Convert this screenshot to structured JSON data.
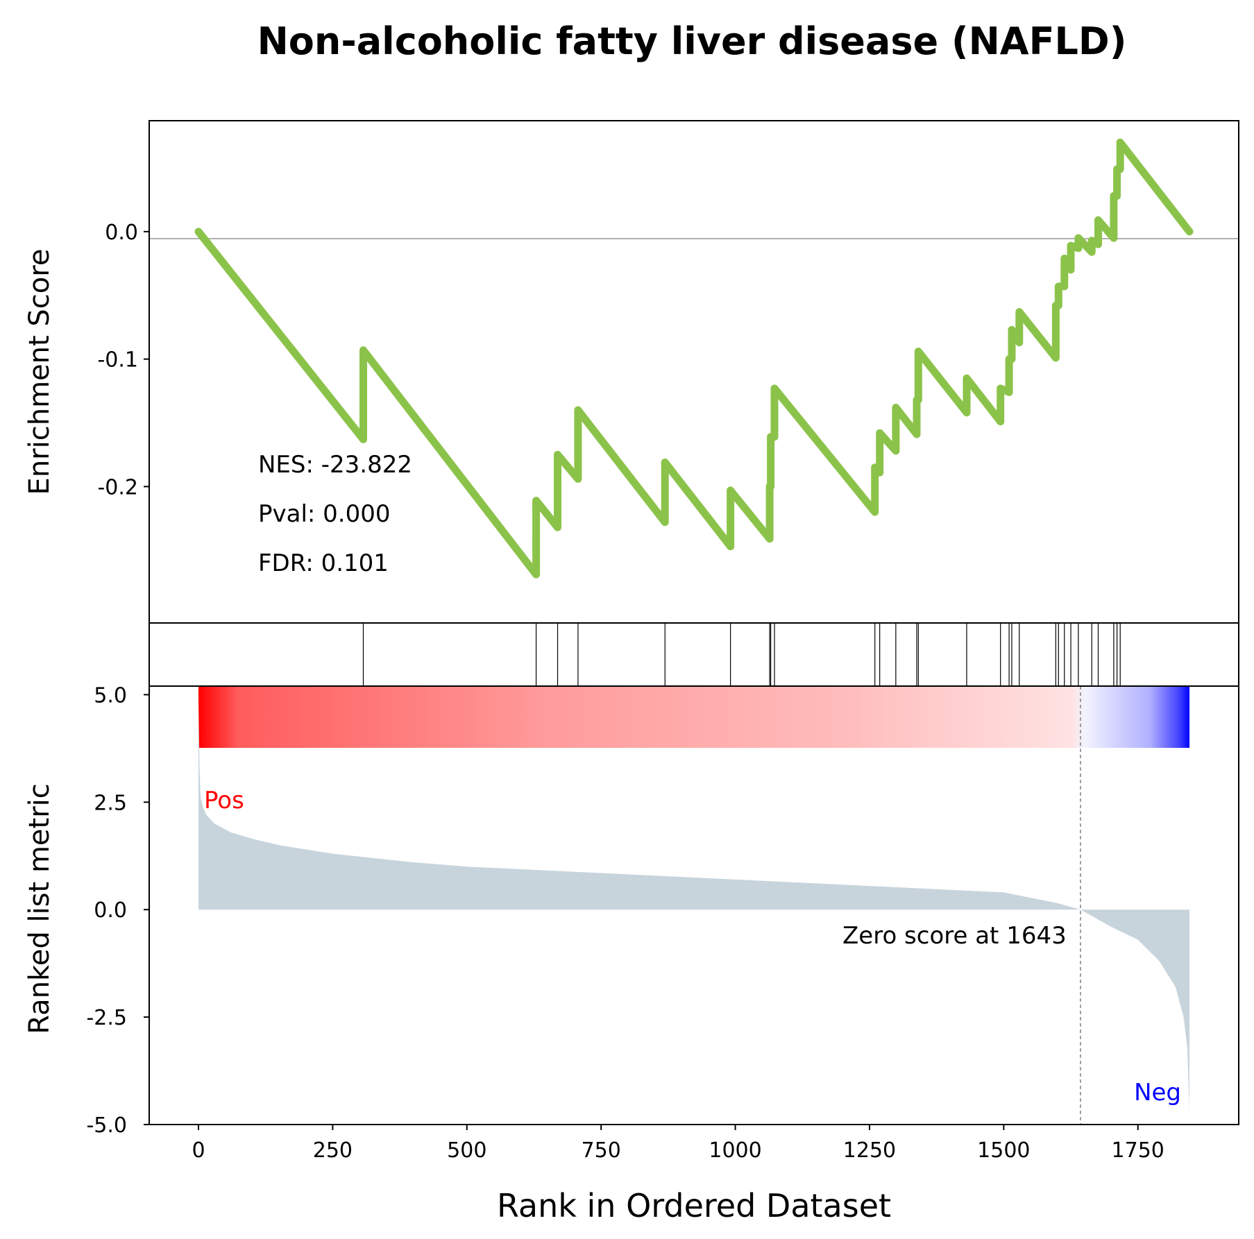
{
  "chart_data": {
    "type": "line",
    "title": "Non-alcoholic fatty liver disease (NAFLD)",
    "xlabel": "Rank in Ordered Dataset",
    "xlim": [
      0,
      1846
    ],
    "xticks": [
      0,
      250,
      500,
      750,
      1000,
      1250,
      1500,
      1750
    ],
    "enrichment": {
      "ylabel": "Enrichment Score",
      "yticks": [
        0.0,
        -0.1,
        -0.2
      ],
      "ytick_labels": [
        "0.0",
        "-0.1",
        "-0.2"
      ],
      "ylim": [
        -0.307,
        0.087
      ],
      "line_color": "#8bc34a",
      "stats": {
        "nes": "NES: -23.822",
        "pval": "Pval: 0.000",
        "fdr": "FDR: 0.101"
      },
      "points": [
        [
          0,
          0.0
        ],
        [
          307,
          -0.163
        ],
        [
          307,
          -0.093
        ],
        [
          629,
          -0.269
        ],
        [
          629,
          -0.211
        ],
        [
          669,
          -0.232
        ],
        [
          669,
          -0.175
        ],
        [
          707,
          -0.194
        ],
        [
          707,
          -0.14
        ],
        [
          869,
          -0.228
        ],
        [
          869,
          -0.181
        ],
        [
          991,
          -0.247
        ],
        [
          991,
          -0.203
        ],
        [
          1064,
          -0.241
        ],
        [
          1064,
          -0.2
        ],
        [
          1066,
          -0.2
        ],
        [
          1066,
          -0.161
        ],
        [
          1073,
          -0.161
        ],
        [
          1073,
          -0.123
        ],
        [
          1260,
          -0.22
        ],
        [
          1260,
          -0.185
        ],
        [
          1269,
          -0.189
        ],
        [
          1269,
          -0.158
        ],
        [
          1299,
          -0.172
        ],
        [
          1299,
          -0.138
        ],
        [
          1338,
          -0.159
        ],
        [
          1338,
          -0.132
        ],
        [
          1341,
          -0.132
        ],
        [
          1341,
          -0.094
        ],
        [
          1431,
          -0.142
        ],
        [
          1431,
          -0.115
        ],
        [
          1494,
          -0.149
        ],
        [
          1494,
          -0.123
        ],
        [
          1510,
          -0.126
        ],
        [
          1510,
          -0.1
        ],
        [
          1515,
          -0.1
        ],
        [
          1515,
          -0.077
        ],
        [
          1529,
          -0.087
        ],
        [
          1529,
          -0.063
        ],
        [
          1597,
          -0.099
        ],
        [
          1597,
          -0.058
        ],
        [
          1602,
          -0.058
        ],
        [
          1602,
          -0.043
        ],
        [
          1613,
          -0.043
        ],
        [
          1613,
          -0.021
        ],
        [
          1625,
          -0.03
        ],
        [
          1625,
          -0.011
        ],
        [
          1639,
          -0.013
        ],
        [
          1639,
          -0.005
        ],
        [
          1664,
          -0.016
        ],
        [
          1664,
          -0.007
        ],
        [
          1676,
          -0.01
        ],
        [
          1676,
          0.009
        ],
        [
          1705,
          -0.005
        ],
        [
          1705,
          0.028
        ],
        [
          1711,
          0.028
        ],
        [
          1711,
          0.049
        ],
        [
          1717,
          0.049
        ],
        [
          1717,
          0.07
        ],
        [
          1846,
          0.0
        ]
      ]
    },
    "hits": [
      307,
      629,
      669,
      707,
      869,
      991,
      1064,
      1066,
      1073,
      1260,
      1269,
      1299,
      1338,
      1341,
      1431,
      1494,
      1510,
      1515,
      1529,
      1597,
      1602,
      1613,
      1625,
      1639,
      1664,
      1676,
      1705,
      1711,
      1717
    ],
    "ranked_metric": {
      "ylabel": "Ranked list metric",
      "yticks": [
        5.0,
        2.5,
        0.0,
        -2.5,
        -5.0
      ],
      "ytick_labels": [
        "5.0",
        "2.5",
        "0.0",
        "-2.5",
        "-5.0"
      ],
      "ylim": [
        -5.0,
        5.2
      ],
      "fill_color": "#c8d4dc",
      "zero_score_label": "Zero score at 1643",
      "zero_rank": 1643,
      "pos_label": "Pos",
      "neg_label": "Neg",
      "pos_color": "#ff0000",
      "neg_color": "#0000ff",
      "profile": [
        [
          0,
          4.9
        ],
        [
          2,
          3.3
        ],
        [
          4,
          2.6
        ],
        [
          8,
          2.4
        ],
        [
          15,
          2.2
        ],
        [
          30,
          2.0
        ],
        [
          60,
          1.8
        ],
        [
          100,
          1.65
        ],
        [
          150,
          1.5
        ],
        [
          250,
          1.3
        ],
        [
          400,
          1.1
        ],
        [
          500,
          1.0
        ],
        [
          750,
          0.85
        ],
        [
          1000,
          0.7
        ],
        [
          1250,
          0.55
        ],
        [
          1500,
          0.4
        ],
        [
          1600,
          0.15
        ],
        [
          1643,
          0.0
        ],
        [
          1700,
          -0.4
        ],
        [
          1750,
          -0.7
        ],
        [
          1790,
          -1.2
        ],
        [
          1820,
          -1.8
        ],
        [
          1835,
          -2.5
        ],
        [
          1842,
          -3.2
        ],
        [
          1846,
          -4.7
        ]
      ]
    }
  }
}
